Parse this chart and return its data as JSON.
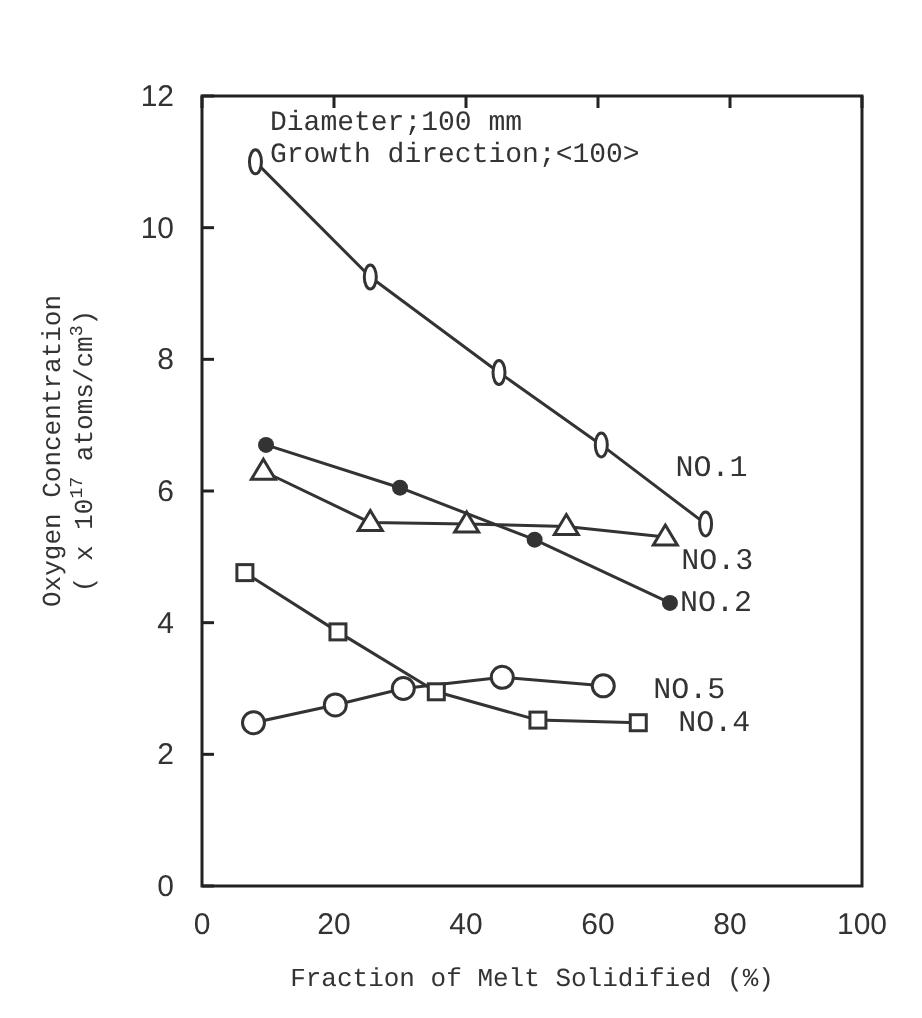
{
  "chart_data": {
    "type": "line",
    "xlabel": "Fraction of Melt Solidified (%)",
    "ylabel": "Oxygen Concentration\n( x 10$^{17}$  atoms/cm$^{3}$)",
    "annotations": [
      "Diameter;100 mm",
      "Growth direction;<100>"
    ],
    "xlim": [
      0,
      100
    ],
    "xticks": [
      0,
      20,
      40,
      60,
      80,
      100
    ],
    "ylim": [
      0,
      12
    ],
    "yticks": [
      0,
      2,
      4,
      6,
      8,
      10,
      12
    ],
    "grid": false,
    "line_style": "solid",
    "series": [
      {
        "name": "NO.1",
        "color": "#333333",
        "marker": "circle",
        "x": [
          8.1,
          25.5,
          45,
          60.5,
          76.3
        ],
        "values": [
          11.0,
          9.25,
          7.8,
          6.7,
          5.5
        ]
      },
      {
        "name": "NO.2",
        "color": "#333333",
        "marker": "circle",
        "x": [
          9.7,
          30,
          50.4,
          70.9
        ],
        "values": [
          6.7,
          6.05,
          5.26,
          4.3
        ]
      },
      {
        "name": "NO.3",
        "color": "#333333",
        "marker": "triangle",
        "x": [
          9.3,
          25.5,
          40.1,
          55.2,
          70.2
        ],
        "values": [
          6.3,
          5.52,
          5.5,
          5.46,
          5.3
        ]
      },
      {
        "name": "NO.5",
        "color": "#333333",
        "marker": "circle",
        "x": [
          7.8,
          20.2,
          30.5,
          45.5,
          60.8
        ],
        "values": [
          2.48,
          2.75,
          3.0,
          3.17,
          3.04
        ]
      },
      {
        "name": "NO.4",
        "color": "#333333",
        "marker": "square",
        "x": [
          6.5,
          20.6,
          35.5,
          50.9,
          66.1
        ],
        "values": [
          4.76,
          3.86,
          2.95,
          2.52,
          2.48
        ]
      }
    ]
  }
}
